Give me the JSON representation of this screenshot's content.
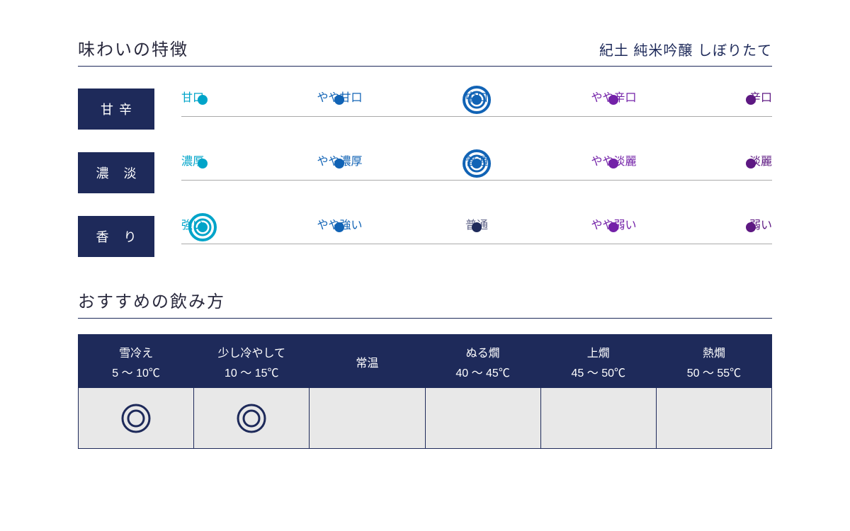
{
  "title": "味わいの特徴",
  "product_name": "紀土 純米吟醸 しぼりたて",
  "colors": {
    "navy": "#1e2a5a",
    "teal": "#00a4c9",
    "blue": "#1163b5",
    "grayblue": "#5b5f85",
    "purple": "#7321a8",
    "darkpurple": "#5d1882",
    "cell_bg": "#e8e8e8"
  },
  "scales": [
    {
      "label": "甘辛",
      "selected_index": 2,
      "points": [
        {
          "text": "甘口",
          "text_color": "#00a4c9",
          "dot_color": "#00a4c9"
        },
        {
          "text": "やや甘口",
          "text_color": "#1163b5",
          "dot_color": "#1163b5"
        },
        {
          "text": "中口",
          "text_color": "#1163b5",
          "dot_color": "#1163b5"
        },
        {
          "text": "やや辛口",
          "text_color": "#7321a8",
          "dot_color": "#7321a8"
        },
        {
          "text": "辛口",
          "text_color": "#5d1882",
          "dot_color": "#5d1882"
        }
      ]
    },
    {
      "label": "濃 淡",
      "selected_index": 2,
      "points": [
        {
          "text": "濃厚",
          "text_color": "#00a4c9",
          "dot_color": "#00a4c9"
        },
        {
          "text": "やや濃厚",
          "text_color": "#1163b5",
          "dot_color": "#1163b5"
        },
        {
          "text": "普通",
          "text_color": "#1163b5",
          "dot_color": "#1163b5"
        },
        {
          "text": "やや淡麗",
          "text_color": "#7321a8",
          "dot_color": "#7321a8"
        },
        {
          "text": "淡麗",
          "text_color": "#5d1882",
          "dot_color": "#5d1882"
        }
      ]
    },
    {
      "label": "香 り",
      "selected_index": 0,
      "points": [
        {
          "text": "強い",
          "text_color": "#00a4c9",
          "dot_color": "#00a4c9"
        },
        {
          "text": "やや強い",
          "text_color": "#1163b5",
          "dot_color": "#1163b5"
        },
        {
          "text": "普通",
          "text_color": "#5b5f85",
          "dot_color": "#1e2a5a"
        },
        {
          "text": "やや弱い",
          "text_color": "#7321a8",
          "dot_color": "#7321a8"
        },
        {
          "text": "弱い",
          "text_color": "#5d1882",
          "dot_color": "#5d1882"
        }
      ]
    }
  ],
  "serving_title": "おすすめの飲み方",
  "serving": [
    {
      "name": "雪冷え",
      "range": "5 〜 10℃",
      "recommended": true
    },
    {
      "name": "少し冷やして",
      "range": "10 〜 15℃",
      "recommended": true
    },
    {
      "name": "常温",
      "range": "",
      "recommended": false
    },
    {
      "name": "ぬる燗",
      "range": "40 〜 45℃",
      "recommended": false
    },
    {
      "name": "上燗",
      "range": "45 〜 50℃",
      "recommended": false
    },
    {
      "name": "熱燗",
      "range": "50 〜 55℃",
      "recommended": false
    }
  ],
  "ring_ratio_outer": 36,
  "ring_ratio_inner": 22,
  "ring_stroke_outer": 4,
  "ring_stroke_inner": 3,
  "dot_radius": 7,
  "mark_svg_size": 44
}
